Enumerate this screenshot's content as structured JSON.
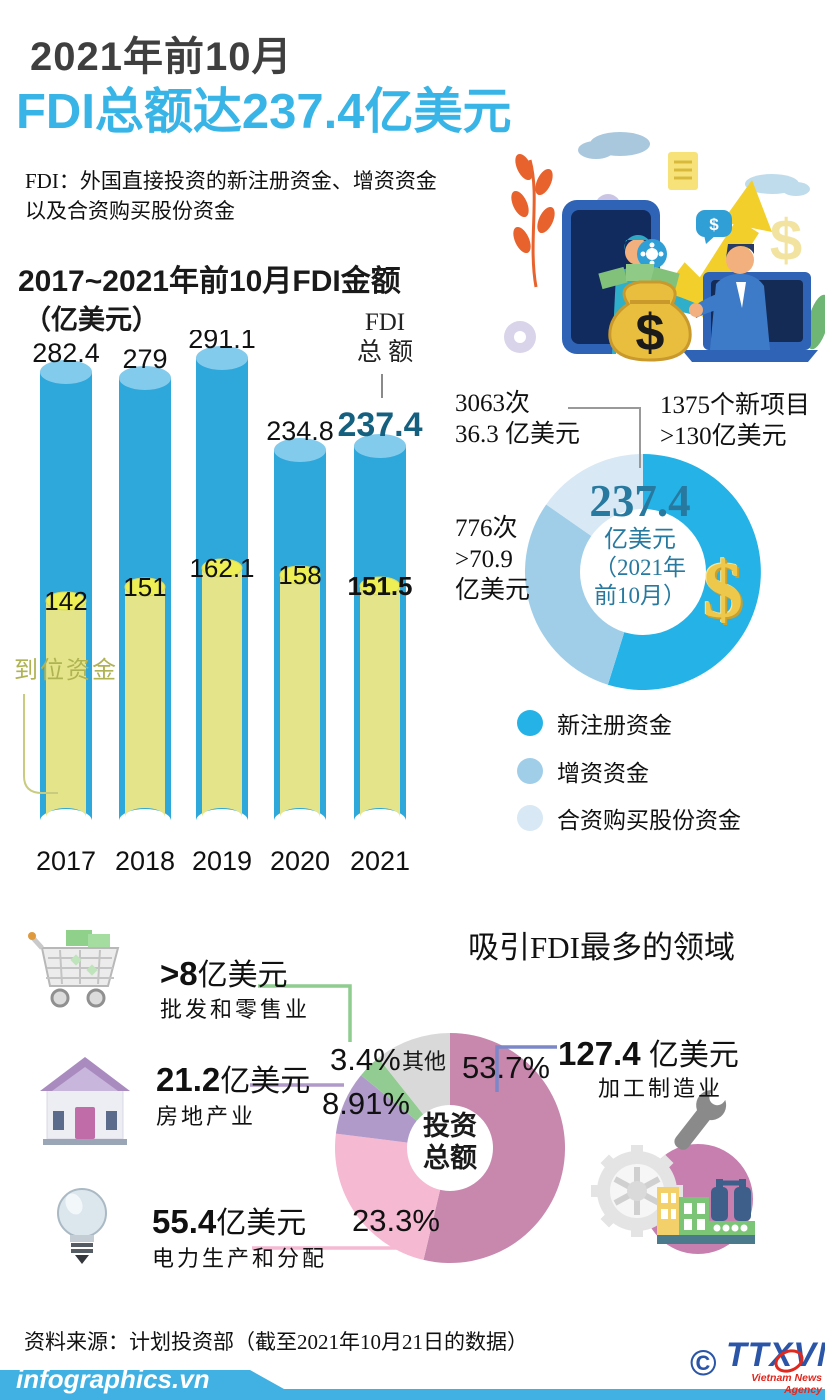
{
  "header": {
    "kicker": "2021年前10月",
    "title": "FDI总额达237.4亿美元",
    "description_line1": "FDI：外国直接投资的新注册资金、增资资金",
    "description_line2": "以及合资购买股份资金"
  },
  "bar_section": {
    "title": "2017~2021年前10月FDI金额",
    "unit": "（亿美元）",
    "total_label_line1": "FDI",
    "total_label_line2": "总 额",
    "disbursed_label": "到位资金"
  },
  "donut_section": {
    "center_value": "237.4",
    "center_unit": "亿美元",
    "center_period_line1": "（2021年",
    "center_period_line2": "前10月）",
    "dollar_sign": "$",
    "callout_share_line1": "3063次",
    "callout_share_line2": "36.3 亿美元",
    "callout_new_line1": "1375个新项目",
    "callout_new_line2": ">130亿美元",
    "callout_add_line1": "776次",
    "callout_add_line2": ">70.9",
    "callout_add_line3": "亿美元",
    "legend": [
      {
        "label": "新注册资金",
        "color": "#25b2e6"
      },
      {
        "label": "增资资金",
        "color": "#a0cee9"
      },
      {
        "label": "合资购买股份资金",
        "color": "#d8e8f4"
      }
    ]
  },
  "sector_section": {
    "title": "吸引FDI最多的领域",
    "center_line1": "投资",
    "center_line2": "总额",
    "retail": {
      "value": ">8",
      "suffix": "亿美元",
      "name": "批发和零售业"
    },
    "realestate": {
      "value": "21.2",
      "suffix": "亿美元",
      "name": "房地产业"
    },
    "power": {
      "value": "55.4",
      "suffix": "亿美元",
      "name": "电力生产和分配"
    },
    "manufacturing": {
      "value": "127.4",
      "suffix": " 亿美元",
      "name": "加工制造业"
    }
  },
  "footer": {
    "source": "资料来源：计划投资部（截至2021年10月21日的数据）",
    "brand": "infographics.vn",
    "copyright": "©",
    "agency": "TTXVN",
    "agency_subtitle": "Vietnam News Agency"
  },
  "chart_data": [
    {
      "type": "bar",
      "title": "2017~2021年前10月FDI金额",
      "ylabel": "亿美元",
      "categories": [
        "2017",
        "2018",
        "2019",
        "2020",
        "2021"
      ],
      "series": [
        {
          "name": "FDI总额",
          "values": [
            282.4,
            279,
            291.1,
            234.8,
            237.4
          ]
        },
        {
          "name": "到位资金",
          "values": [
            142,
            151,
            162.1,
            158,
            151.5
          ]
        }
      ],
      "colors": {
        "total_body": "#2ea7db",
        "total_top": "#83cbec",
        "disbursed_body": "#e4e58a",
        "disbursed_top": "#edef55"
      }
    },
    {
      "type": "pie",
      "title": "FDI总额 237.4亿美元（2021年前10月）",
      "slices": [
        {
          "label": "新注册资金",
          "value": 130,
          "value_text": ">130亿美元",
          "note": "1375个新项目",
          "color": "#25b2e6"
        },
        {
          "label": "增资资金",
          "value": 70.9,
          "value_text": ">70.9亿美元",
          "note": "776次",
          "color": "#a0cee9"
        },
        {
          "label": "合资购买股份资金",
          "value": 36.3,
          "value_text": "36.3 亿美元",
          "note": "3063次",
          "color": "#d8e8f4"
        }
      ],
      "hole": true
    },
    {
      "type": "pie",
      "title": "吸引FDI最多的领域",
      "center_label": "投资总额",
      "slices": [
        {
          "label": "加工制造业",
          "pct": 53.7,
          "pct_label": "53.7%",
          "amount_text": "127.4 亿美元",
          "color": "#c888ae"
        },
        {
          "label": "电力生产和分配",
          "pct": 23.3,
          "pct_label": "23.3%",
          "amount_text": "55.4亿美元",
          "color": "#f5b9d2"
        },
        {
          "label": "房地产业",
          "pct": 8.91,
          "pct_label": "8.91%",
          "amount_text": "21.2亿美元",
          "color": "#b09aca"
        },
        {
          "label": "批发和零售业",
          "pct": 3.4,
          "pct_label": "3.4%",
          "amount_text": ">8亿美元",
          "color": "#92cc92"
        },
        {
          "label": "其他",
          "pct": 10.69,
          "pct_label": "",
          "color": "#d9d9d9"
        }
      ],
      "hole": true
    }
  ]
}
